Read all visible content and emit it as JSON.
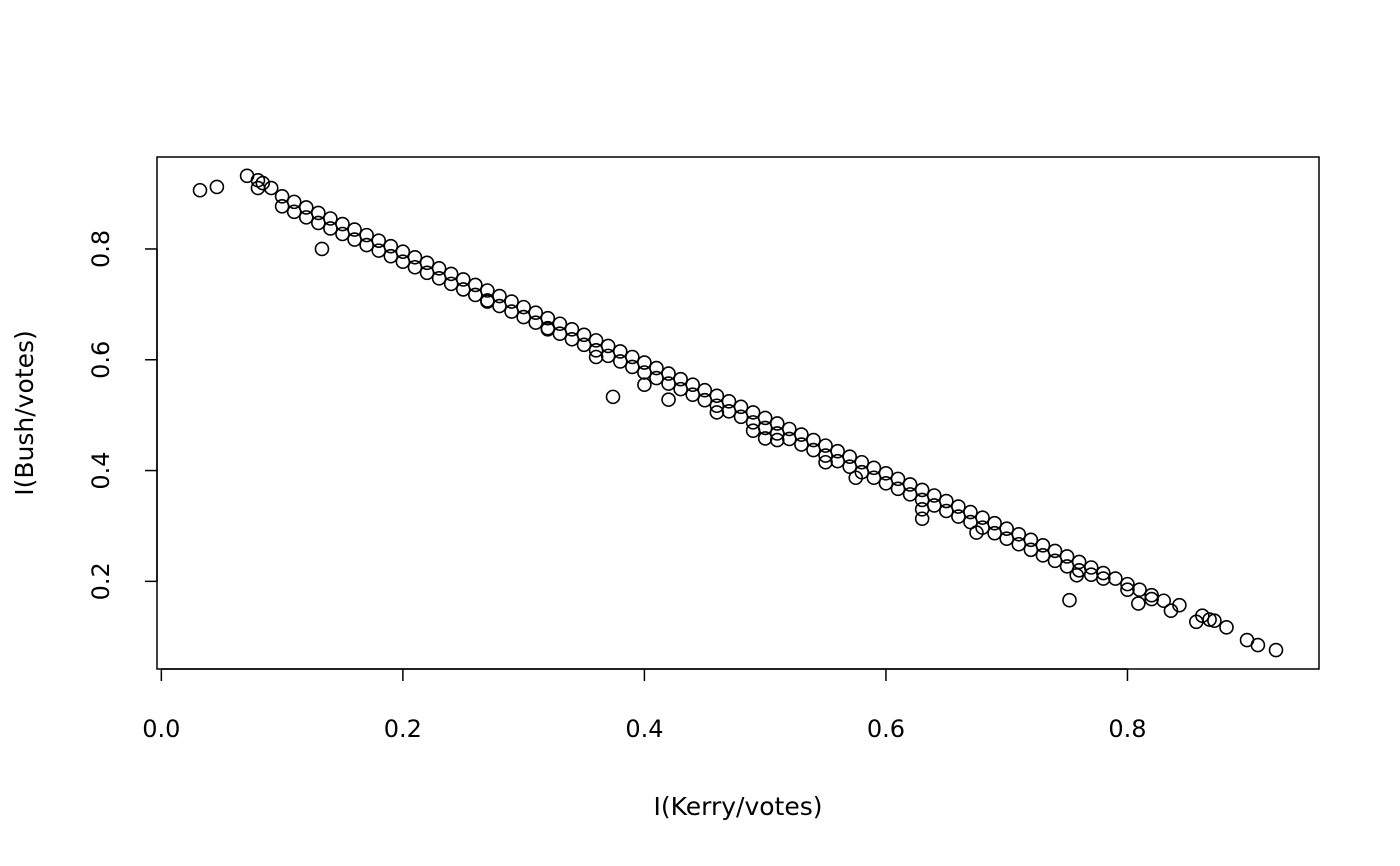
{
  "chart_data": {
    "type": "scatter",
    "title": "",
    "xlabel": "I(Kerry/votes)",
    "ylabel": "I(Bush/votes)",
    "xlim": [
      -0.0036,
      0.9586
    ],
    "ylim": [
      0.0418,
      0.966
    ],
    "xticks": [
      0.0,
      0.2,
      0.4,
      0.6,
      0.8
    ],
    "xtick_labels": [
      "0.0",
      "0.2",
      "0.4",
      "0.6",
      "0.8"
    ],
    "yticks": [
      0.2,
      0.4,
      0.6,
      0.8
    ],
    "ytick_labels": [
      "0.2",
      "0.4",
      "0.6",
      "0.8"
    ],
    "grid": false,
    "marker": "open-circle",
    "color": "#000000",
    "points": [
      [
        0.032,
        0.906
      ],
      [
        0.046,
        0.912
      ],
      [
        0.071,
        0.932
      ],
      [
        0.08,
        0.924
      ],
      [
        0.084,
        0.919
      ],
      [
        0.091,
        0.91
      ],
      [
        0.08,
        0.91
      ],
      [
        0.133,
        0.8
      ],
      [
        0.1,
        0.895
      ],
      [
        0.1,
        0.877
      ],
      [
        0.11,
        0.885
      ],
      [
        0.11,
        0.867
      ],
      [
        0.12,
        0.875
      ],
      [
        0.12,
        0.857
      ],
      [
        0.13,
        0.865
      ],
      [
        0.13,
        0.847
      ],
      [
        0.14,
        0.855
      ],
      [
        0.14,
        0.837
      ],
      [
        0.15,
        0.845
      ],
      [
        0.15,
        0.827
      ],
      [
        0.16,
        0.835
      ],
      [
        0.16,
        0.817
      ],
      [
        0.17,
        0.825
      ],
      [
        0.17,
        0.807
      ],
      [
        0.18,
        0.815
      ],
      [
        0.18,
        0.797
      ],
      [
        0.19,
        0.805
      ],
      [
        0.19,
        0.787
      ],
      [
        0.2,
        0.795
      ],
      [
        0.2,
        0.777
      ],
      [
        0.21,
        0.785
      ],
      [
        0.21,
        0.767
      ],
      [
        0.22,
        0.775
      ],
      [
        0.22,
        0.757
      ],
      [
        0.23,
        0.765
      ],
      [
        0.23,
        0.747
      ],
      [
        0.24,
        0.755
      ],
      [
        0.24,
        0.737
      ],
      [
        0.25,
        0.745
      ],
      [
        0.25,
        0.727
      ],
      [
        0.26,
        0.735
      ],
      [
        0.26,
        0.717
      ],
      [
        0.27,
        0.725
      ],
      [
        0.27,
        0.707
      ],
      [
        0.28,
        0.715
      ],
      [
        0.28,
        0.697
      ],
      [
        0.29,
        0.705
      ],
      [
        0.29,
        0.687
      ],
      [
        0.3,
        0.695
      ],
      [
        0.3,
        0.677
      ],
      [
        0.31,
        0.685
      ],
      [
        0.31,
        0.667
      ],
      [
        0.32,
        0.675
      ],
      [
        0.32,
        0.657
      ],
      [
        0.33,
        0.665
      ],
      [
        0.33,
        0.647
      ],
      [
        0.34,
        0.655
      ],
      [
        0.34,
        0.637
      ],
      [
        0.35,
        0.645
      ],
      [
        0.35,
        0.627
      ],
      [
        0.36,
        0.635
      ],
      [
        0.36,
        0.617
      ],
      [
        0.37,
        0.625
      ],
      [
        0.37,
        0.607
      ],
      [
        0.38,
        0.615
      ],
      [
        0.38,
        0.597
      ],
      [
        0.39,
        0.605
      ],
      [
        0.39,
        0.587
      ],
      [
        0.4,
        0.595
      ],
      [
        0.4,
        0.577
      ],
      [
        0.41,
        0.585
      ],
      [
        0.41,
        0.567
      ],
      [
        0.42,
        0.575
      ],
      [
        0.42,
        0.557
      ],
      [
        0.43,
        0.565
      ],
      [
        0.43,
        0.547
      ],
      [
        0.44,
        0.555
      ],
      [
        0.44,
        0.537
      ],
      [
        0.45,
        0.545
      ],
      [
        0.45,
        0.527
      ],
      [
        0.46,
        0.535
      ],
      [
        0.46,
        0.517
      ],
      [
        0.47,
        0.525
      ],
      [
        0.47,
        0.507
      ],
      [
        0.48,
        0.515
      ],
      [
        0.48,
        0.497
      ],
      [
        0.49,
        0.505
      ],
      [
        0.49,
        0.487
      ],
      [
        0.5,
        0.495
      ],
      [
        0.5,
        0.477
      ],
      [
        0.51,
        0.485
      ],
      [
        0.51,
        0.467
      ],
      [
        0.52,
        0.475
      ],
      [
        0.52,
        0.457
      ],
      [
        0.53,
        0.465
      ],
      [
        0.53,
        0.447
      ],
      [
        0.54,
        0.455
      ],
      [
        0.54,
        0.437
      ],
      [
        0.55,
        0.445
      ],
      [
        0.55,
        0.427
      ],
      [
        0.56,
        0.435
      ],
      [
        0.56,
        0.417
      ],
      [
        0.57,
        0.425
      ],
      [
        0.57,
        0.407
      ],
      [
        0.58,
        0.415
      ],
      [
        0.58,
        0.397
      ],
      [
        0.59,
        0.405
      ],
      [
        0.59,
        0.387
      ],
      [
        0.6,
        0.395
      ],
      [
        0.6,
        0.377
      ],
      [
        0.61,
        0.385
      ],
      [
        0.61,
        0.367
      ],
      [
        0.62,
        0.375
      ],
      [
        0.62,
        0.357
      ],
      [
        0.63,
        0.365
      ],
      [
        0.63,
        0.347
      ],
      [
        0.64,
        0.355
      ],
      [
        0.64,
        0.337
      ],
      [
        0.65,
        0.345
      ],
      [
        0.65,
        0.327
      ],
      [
        0.66,
        0.335
      ],
      [
        0.66,
        0.317
      ],
      [
        0.67,
        0.325
      ],
      [
        0.67,
        0.307
      ],
      [
        0.68,
        0.315
      ],
      [
        0.68,
        0.297
      ],
      [
        0.69,
        0.305
      ],
      [
        0.69,
        0.287
      ],
      [
        0.7,
        0.295
      ],
      [
        0.7,
        0.277
      ],
      [
        0.71,
        0.285
      ],
      [
        0.71,
        0.267
      ],
      [
        0.72,
        0.275
      ],
      [
        0.72,
        0.257
      ],
      [
        0.73,
        0.265
      ],
      [
        0.73,
        0.247
      ],
      [
        0.74,
        0.255
      ],
      [
        0.74,
        0.237
      ],
      [
        0.75,
        0.245
      ],
      [
        0.75,
        0.227
      ],
      [
        0.76,
        0.235
      ],
      [
        0.76,
        0.22
      ],
      [
        0.77,
        0.225
      ],
      [
        0.77,
        0.212
      ],
      [
        0.78,
        0.215
      ],
      [
        0.78,
        0.205
      ],
      [
        0.79,
        0.205
      ],
      [
        0.8,
        0.195
      ],
      [
        0.8,
        0.185
      ],
      [
        0.81,
        0.185
      ],
      [
        0.82,
        0.175
      ],
      [
        0.82,
        0.168
      ],
      [
        0.83,
        0.165
      ],
      [
        0.27,
        0.705
      ],
      [
        0.32,
        0.655
      ],
      [
        0.36,
        0.605
      ],
      [
        0.4,
        0.555
      ],
      [
        0.42,
        0.528
      ],
      [
        0.46,
        0.505
      ],
      [
        0.49,
        0.472
      ],
      [
        0.5,
        0.458
      ],
      [
        0.51,
        0.455
      ],
      [
        0.55,
        0.415
      ],
      [
        0.575,
        0.387
      ],
      [
        0.63,
        0.313
      ],
      [
        0.63,
        0.33
      ],
      [
        0.675,
        0.288
      ],
      [
        0.758,
        0.211
      ],
      [
        0.374,
        0.533
      ],
      [
        0.752,
        0.166
      ],
      [
        0.809,
        0.16
      ],
      [
        0.836,
        0.147
      ],
      [
        0.843,
        0.157
      ],
      [
        0.857,
        0.127
      ],
      [
        0.862,
        0.138
      ],
      [
        0.868,
        0.131
      ],
      [
        0.872,
        0.129
      ],
      [
        0.882,
        0.117
      ],
      [
        0.899,
        0.094
      ],
      [
        0.908,
        0.085
      ],
      [
        0.923,
        0.076
      ]
    ]
  }
}
